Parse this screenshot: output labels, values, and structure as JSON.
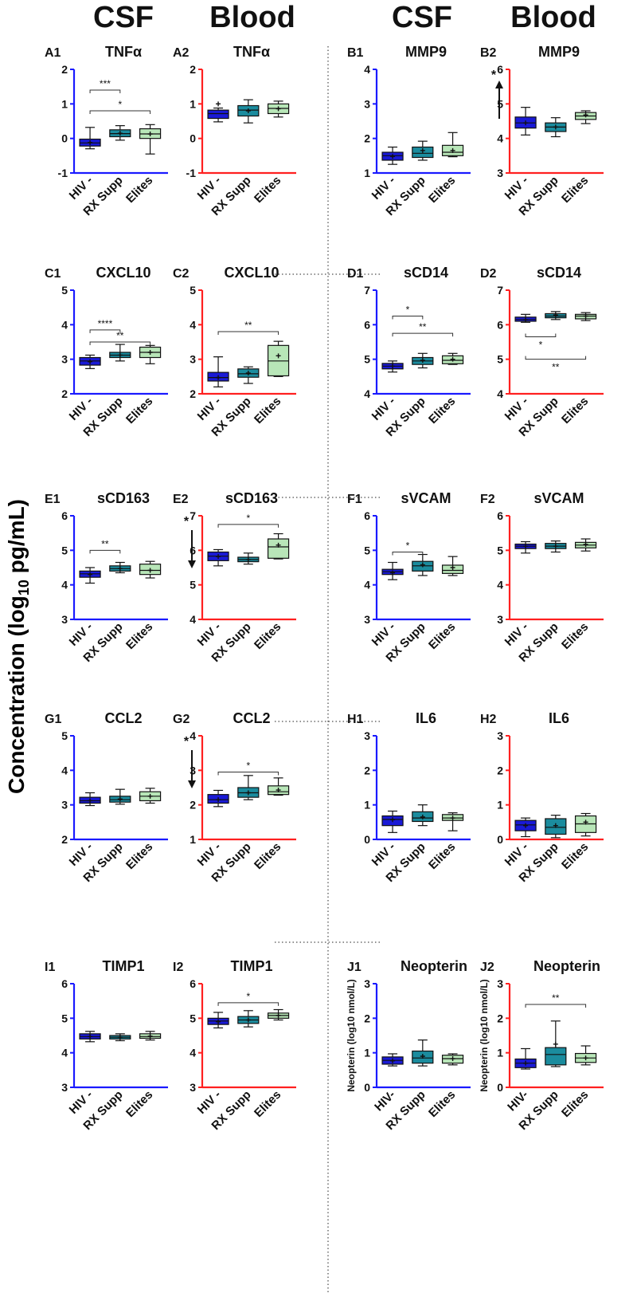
{
  "headers": [
    "CSF",
    "Blood",
    "CSF",
    "Blood"
  ],
  "y_title": "Concentration (log10 pg/mL)",
  "colors": {
    "csf_axis": "#1a1aff",
    "blood_axis": "#ff2020",
    "hiv_neg": "#1a1ad6",
    "rx_supp": "#1b8c9e",
    "elites": "#b8e6b8"
  },
  "categories": [
    "HIV -",
    "RX Supp",
    "Elites"
  ],
  "chart_data": [
    {
      "id": "A1",
      "title": "TNFα",
      "type": "box",
      "fluid": "CSF",
      "ylim": [
        -1,
        2
      ],
      "yticks": [
        -1,
        0,
        1,
        2
      ],
      "boxes": [
        {
          "min": -0.3,
          "q1": -0.22,
          "med": -0.13,
          "q3": -0.02,
          "max": 0.32,
          "mean": -0.12
        },
        {
          "min": -0.05,
          "q1": 0.05,
          "med": 0.14,
          "q3": 0.25,
          "max": 0.37,
          "mean": 0.15
        },
        {
          "min": -0.45,
          "q1": 0.0,
          "med": 0.13,
          "q3": 0.28,
          "max": 0.4,
          "mean": 0.13
        }
      ],
      "sig": [
        {
          "from": 0,
          "to": 1,
          "y": 1.4,
          "label": "***"
        },
        {
          "from": 0,
          "to": 2,
          "y": 0.8,
          "label": "*"
        }
      ]
    },
    {
      "id": "A2",
      "title": "TNFα",
      "type": "box",
      "fluid": "Blood",
      "ylim": [
        -1,
        2
      ],
      "yticks": [
        -1,
        0,
        1,
        2
      ],
      "boxes": [
        {
          "min": 0.48,
          "q1": 0.58,
          "med": 0.72,
          "q3": 0.82,
          "max": 0.88,
          "mean": 1.0
        },
        {
          "min": 0.45,
          "q1": 0.65,
          "med": 0.82,
          "q3": 0.95,
          "max": 1.12,
          "mean": 0.8
        },
        {
          "min": 0.62,
          "q1": 0.72,
          "med": 0.87,
          "q3": 1.0,
          "max": 1.08,
          "mean": 0.86
        }
      ],
      "sig": []
    },
    {
      "id": "B1",
      "title": "MMP9",
      "type": "box",
      "fluid": "CSF",
      "ylim": [
        1,
        4
      ],
      "yticks": [
        1,
        2,
        3,
        4
      ],
      "boxes": [
        {
          "min": 1.25,
          "q1": 1.37,
          "med": 1.5,
          "q3": 1.6,
          "max": 1.75,
          "mean": 1.48
        },
        {
          "min": 1.37,
          "q1": 1.45,
          "med": 1.57,
          "q3": 1.75,
          "max": 1.92,
          "mean": 1.65
        },
        {
          "min": 1.47,
          "q1": 1.5,
          "med": 1.6,
          "q3": 1.8,
          "max": 2.17,
          "mean": 1.65
        }
      ],
      "sig": []
    },
    {
      "id": "B2",
      "title": "MMP9",
      "type": "box",
      "fluid": "Blood",
      "ylim": [
        3,
        6
      ],
      "yticks": [
        3,
        4,
        5,
        6
      ],
      "annotation": "*",
      "arrow": "up",
      "boxes": [
        {
          "min": 4.1,
          "q1": 4.3,
          "med": 4.45,
          "q3": 4.62,
          "max": 4.9,
          "mean": 4.45
        },
        {
          "min": 4.05,
          "q1": 4.2,
          "med": 4.33,
          "q3": 4.45,
          "max": 4.6,
          "mean": 4.33
        },
        {
          "min": 4.43,
          "q1": 4.55,
          "med": 4.65,
          "q3": 4.75,
          "max": 4.8,
          "mean": 4.68
        }
      ],
      "sig": []
    },
    {
      "id": "C1",
      "title": "CXCL10",
      "type": "box",
      "fluid": "CSF",
      "ylim": [
        2,
        5
      ],
      "yticks": [
        2,
        3,
        4,
        5
      ],
      "boxes": [
        {
          "min": 2.73,
          "q1": 2.83,
          "med": 2.95,
          "q3": 3.05,
          "max": 3.12,
          "mean": 2.93
        },
        {
          "min": 2.95,
          "q1": 3.05,
          "med": 3.12,
          "q3": 3.2,
          "max": 3.43,
          "mean": 3.12
        },
        {
          "min": 2.87,
          "q1": 3.05,
          "med": 3.2,
          "q3": 3.35,
          "max": 3.4,
          "mean": 3.2
        }
      ],
      "sig": [
        {
          "from": 0,
          "to": 1,
          "y": 3.85,
          "label": "****"
        },
        {
          "from": 0,
          "to": 2,
          "y": 3.5,
          "label": "**"
        }
      ]
    },
    {
      "id": "C2",
      "title": "CXCL10",
      "type": "box",
      "fluid": "Blood",
      "ylim": [
        2,
        5
      ],
      "yticks": [
        2,
        3,
        4,
        5
      ],
      "boxes": [
        {
          "min": 2.2,
          "q1": 2.37,
          "med": 2.47,
          "q3": 2.62,
          "max": 3.07,
          "mean": 2.47
        },
        {
          "min": 2.3,
          "q1": 2.48,
          "med": 2.58,
          "q3": 2.72,
          "max": 2.78,
          "mean": 2.6
        },
        {
          "min": 2.5,
          "q1": 2.52,
          "med": 2.95,
          "q3": 3.4,
          "max": 3.52,
          "mean": 3.1
        }
      ],
      "sig": [
        {
          "from": 0,
          "to": 2,
          "y": 3.8,
          "label": "**"
        }
      ]
    },
    {
      "id": "D1",
      "title": "sCD14",
      "type": "box",
      "fluid": "CSF",
      "ylim": [
        4,
        7
      ],
      "yticks": [
        4,
        5,
        6,
        7
      ],
      "boxes": [
        {
          "min": 4.63,
          "q1": 4.72,
          "med": 4.8,
          "q3": 4.88,
          "max": 4.95,
          "mean": 4.8
        },
        {
          "min": 4.75,
          "q1": 4.85,
          "med": 4.95,
          "q3": 5.05,
          "max": 5.17,
          "mean": 4.97
        },
        {
          "min": 4.85,
          "q1": 4.87,
          "med": 4.97,
          "q3": 5.1,
          "max": 5.17,
          "mean": 5.0
        }
      ],
      "sig": [
        {
          "from": 0,
          "to": 1,
          "y": 6.25,
          "label": "*"
        },
        {
          "from": 0,
          "to": 2,
          "y": 5.75,
          "label": "**"
        }
      ]
    },
    {
      "id": "D2",
      "title": "sCD14",
      "type": "box",
      "fluid": "Blood",
      "ylim": [
        4,
        7
      ],
      "yticks": [
        4,
        5,
        6,
        7
      ],
      "boxes": [
        {
          "min": 6.07,
          "q1": 6.1,
          "med": 6.15,
          "q3": 6.22,
          "max": 6.3,
          "mean": 6.15
        },
        {
          "min": 6.15,
          "q1": 6.2,
          "med": 6.25,
          "q3": 6.32,
          "max": 6.38,
          "mean": 6.28
        },
        {
          "min": 6.12,
          "q1": 6.17,
          "med": 6.25,
          "q3": 6.3,
          "max": 6.35,
          "mean": 6.25
        }
      ],
      "sig": [
        {
          "from": 0,
          "to": 1,
          "y": 5.65,
          "label": "*",
          "below": true
        },
        {
          "from": 0,
          "to": 2,
          "y": 5.0,
          "label": "**",
          "below": true
        }
      ]
    },
    {
      "id": "E1",
      "title": "sCD163",
      "type": "box",
      "fluid": "CSF",
      "ylim": [
        3,
        6
      ],
      "yticks": [
        3,
        4,
        5,
        6
      ],
      "boxes": [
        {
          "min": 4.05,
          "q1": 4.22,
          "med": 4.32,
          "q3": 4.4,
          "max": 4.5,
          "mean": 4.3
        },
        {
          "min": 4.35,
          "q1": 4.4,
          "med": 4.47,
          "q3": 4.55,
          "max": 4.65,
          "mean": 4.47
        },
        {
          "min": 4.2,
          "q1": 4.3,
          "med": 4.42,
          "q3": 4.6,
          "max": 4.68,
          "mean": 4.42
        }
      ],
      "sig": [
        {
          "from": 0,
          "to": 1,
          "y": 5.0,
          "label": "**"
        }
      ]
    },
    {
      "id": "E2",
      "title": "sCD163",
      "type": "box",
      "fluid": "Blood",
      "ylim": [
        4,
        7
      ],
      "yticks": [
        4,
        5,
        6,
        7
      ],
      "annotation": "*",
      "arrow": "down",
      "boxes": [
        {
          "min": 5.55,
          "q1": 5.7,
          "med": 5.83,
          "q3": 5.95,
          "max": 6.02,
          "mean": 5.82
        },
        {
          "min": 5.6,
          "q1": 5.67,
          "med": 5.73,
          "q3": 5.8,
          "max": 5.92,
          "mean": 5.73
        },
        {
          "min": 5.75,
          "q1": 5.77,
          "med": 6.1,
          "q3": 6.33,
          "max": 6.48,
          "mean": 6.15
        }
      ],
      "sig": [
        {
          "from": 0,
          "to": 2,
          "y": 6.75,
          "label": "*"
        }
      ]
    },
    {
      "id": "F1",
      "title": "sVCAM",
      "type": "box",
      "fluid": "CSF",
      "ylim": [
        3,
        6
      ],
      "yticks": [
        3,
        4,
        5,
        6
      ],
      "boxes": [
        {
          "min": 4.15,
          "q1": 4.3,
          "med": 4.38,
          "q3": 4.45,
          "max": 4.65,
          "mean": 4.35
        },
        {
          "min": 4.27,
          "q1": 4.4,
          "med": 4.55,
          "q3": 4.68,
          "max": 4.88,
          "mean": 4.58
        },
        {
          "min": 4.27,
          "q1": 4.33,
          "med": 4.42,
          "q3": 4.57,
          "max": 4.82,
          "mean": 4.5
        }
      ],
      "sig": [
        {
          "from": 0,
          "to": 1,
          "y": 4.95,
          "label": "*"
        }
      ]
    },
    {
      "id": "F2",
      "title": "sVCAM",
      "type": "box",
      "fluid": "Blood",
      "ylim": [
        3,
        6
      ],
      "yticks": [
        3,
        4,
        5,
        6
      ],
      "boxes": [
        {
          "min": 4.92,
          "q1": 5.05,
          "med": 5.12,
          "q3": 5.18,
          "max": 5.25,
          "mean": 5.12
        },
        {
          "min": 4.95,
          "q1": 5.05,
          "med": 5.12,
          "q3": 5.2,
          "max": 5.27,
          "mean": 5.12
        },
        {
          "min": 4.98,
          "q1": 5.07,
          "med": 5.15,
          "q3": 5.23,
          "max": 5.33,
          "mean": 5.17
        }
      ],
      "sig": []
    },
    {
      "id": "G1",
      "title": "CCL2",
      "type": "box",
      "fluid": "CSF",
      "ylim": [
        2,
        5
      ],
      "yticks": [
        2,
        3,
        4,
        5
      ],
      "boxes": [
        {
          "min": 2.98,
          "q1": 3.05,
          "med": 3.12,
          "q3": 3.22,
          "max": 3.35,
          "mean": 3.12
        },
        {
          "min": 3.02,
          "q1": 3.08,
          "med": 3.15,
          "q3": 3.25,
          "max": 3.45,
          "mean": 3.17
        },
        {
          "min": 3.05,
          "q1": 3.12,
          "med": 3.25,
          "q3": 3.38,
          "max": 3.48,
          "mean": 3.25
        }
      ],
      "sig": []
    },
    {
      "id": "G2",
      "title": "CCL2",
      "type": "box",
      "fluid": "Blood",
      "ylim": [
        1,
        4
      ],
      "yticks": [
        1,
        2,
        3,
        4
      ],
      "annotation": "*",
      "arrow": "down",
      "boxes": [
        {
          "min": 1.95,
          "q1": 2.05,
          "med": 2.15,
          "q3": 2.3,
          "max": 2.42,
          "mean": 2.15
        },
        {
          "min": 2.15,
          "q1": 2.22,
          "med": 2.35,
          "q3": 2.5,
          "max": 2.85,
          "mean": 2.35
        },
        {
          "min": 2.28,
          "q1": 2.3,
          "med": 2.38,
          "q3": 2.55,
          "max": 2.78,
          "mean": 2.43
        }
      ],
      "sig": [
        {
          "from": 0,
          "to": 2,
          "y": 2.95,
          "label": "*"
        }
      ]
    },
    {
      "id": "H1",
      "title": "IL6",
      "type": "box",
      "fluid": "CSF",
      "ylim": [
        0,
        3
      ],
      "yticks": [
        0,
        1,
        2,
        3
      ],
      "boxes": [
        {
          "min": 0.2,
          "q1": 0.4,
          "med": 0.58,
          "q3": 0.68,
          "max": 0.82,
          "mean": 0.57
        },
        {
          "min": 0.4,
          "q1": 0.52,
          "med": 0.62,
          "q3": 0.8,
          "max": 1.0,
          "mean": 0.65
        },
        {
          "min": 0.25,
          "q1": 0.55,
          "med": 0.62,
          "q3": 0.72,
          "max": 0.77,
          "mean": 0.62
        }
      ],
      "sig": []
    },
    {
      "id": "H2",
      "title": "IL6",
      "type": "box",
      "fluid": "Blood",
      "ylim": [
        0,
        3
      ],
      "yticks": [
        0,
        1,
        2,
        3
      ],
      "boxes": [
        {
          "min": 0.08,
          "q1": 0.25,
          "med": 0.42,
          "q3": 0.55,
          "max": 0.62,
          "mean": 0.4
        },
        {
          "min": 0.05,
          "q1": 0.15,
          "med": 0.35,
          "q3": 0.6,
          "max": 0.7,
          "mean": 0.4
        },
        {
          "min": 0.1,
          "q1": 0.2,
          "med": 0.45,
          "q3": 0.68,
          "max": 0.75,
          "mean": 0.5
        }
      ],
      "sig": []
    },
    {
      "id": "I1",
      "title": "TIMP1",
      "type": "box",
      "fluid": "CSF",
      "ylim": [
        3,
        6
      ],
      "yticks": [
        3,
        4,
        5,
        6
      ],
      "boxes": [
        {
          "min": 4.32,
          "q1": 4.4,
          "med": 4.47,
          "q3": 4.55,
          "max": 4.62,
          "mean": 4.47
        },
        {
          "min": 4.35,
          "q1": 4.4,
          "med": 4.45,
          "q3": 4.5,
          "max": 4.55,
          "mean": 4.45
        },
        {
          "min": 4.37,
          "q1": 4.42,
          "med": 4.47,
          "q3": 4.55,
          "max": 4.62,
          "mean": 4.48
        }
      ],
      "sig": []
    },
    {
      "id": "I2",
      "title": "TIMP1",
      "type": "box",
      "fluid": "Blood",
      "ylim": [
        3,
        6
      ],
      "yticks": [
        3,
        4,
        5,
        6
      ],
      "boxes": [
        {
          "min": 4.72,
          "q1": 4.82,
          "med": 4.92,
          "q3": 5.0,
          "max": 5.17,
          "mean": 4.9
        },
        {
          "min": 4.75,
          "q1": 4.85,
          "med": 4.95,
          "q3": 5.05,
          "max": 5.22,
          "mean": 4.95
        },
        {
          "min": 4.95,
          "q1": 5.0,
          "med": 5.08,
          "q3": 5.15,
          "max": 5.25,
          "mean": 5.08
        }
      ],
      "sig": [
        {
          "from": 0,
          "to": 2,
          "y": 5.45,
          "label": "*"
        }
      ]
    },
    {
      "id": "J1",
      "title": "Neopterin",
      "type": "box",
      "fluid": "CSF",
      "ylim": [
        0,
        3
      ],
      "yticks": [
        0,
        1,
        2,
        3
      ],
      "ylabel": "Neopterin (log10 nmol/L)",
      "boxes": [
        {
          "min": 0.62,
          "q1": 0.67,
          "med": 0.78,
          "q3": 0.88,
          "max": 0.97,
          "mean": 0.77
        },
        {
          "min": 0.62,
          "q1": 0.7,
          "med": 0.85,
          "q3": 1.05,
          "max": 1.37,
          "mean": 0.9
        },
        {
          "min": 0.65,
          "q1": 0.7,
          "med": 0.83,
          "q3": 0.93,
          "max": 0.97,
          "mean": 0.83
        }
      ],
      "sig": []
    },
    {
      "id": "J2",
      "title": "Neopterin",
      "type": "box",
      "fluid": "Blood",
      "ylim": [
        0,
        3
      ],
      "yticks": [
        0,
        1,
        2,
        3
      ],
      "ylabel": "Neopterin (log10 nmol/L)",
      "boxes": [
        {
          "min": 0.53,
          "q1": 0.57,
          "med": 0.7,
          "q3": 0.82,
          "max": 1.12,
          "mean": 0.7
        },
        {
          "min": 0.6,
          "q1": 0.65,
          "med": 0.95,
          "q3": 1.15,
          "max": 1.92,
          "mean": 1.25
        },
        {
          "min": 0.65,
          "q1": 0.72,
          "med": 0.85,
          "q3": 0.98,
          "max": 1.2,
          "mean": 0.85
        }
      ],
      "sig": [
        {
          "from": 0,
          "to": 2,
          "y": 2.4,
          "label": "**"
        }
      ]
    }
  ],
  "x_labels_J": [
    "HIV-",
    "RX Supp",
    "Elites"
  ]
}
